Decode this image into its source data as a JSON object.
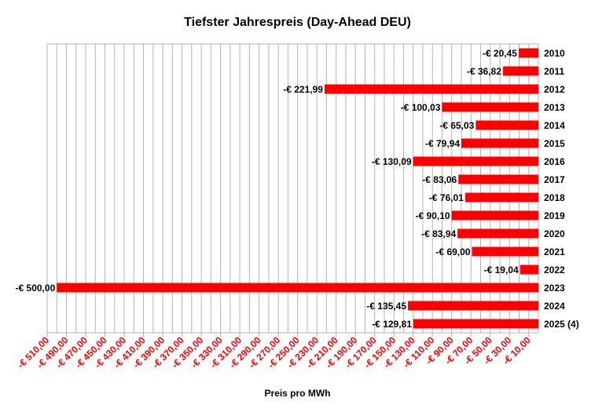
{
  "chart_data": {
    "type": "bar",
    "orientation": "horizontal",
    "title": "Tiefster Jahrespreis (Day-Ahead DEU)",
    "xlabel": "Preis pro MWh",
    "ylabel": "",
    "categories": [
      "2010",
      "2011",
      "2012",
      "2013",
      "2014",
      "2015",
      "2016",
      "2017",
      "2018",
      "2019",
      "2020",
      "2021",
      "2022",
      "2023",
      "2024",
      "2025 (4)"
    ],
    "values": [
      -20.45,
      -36.82,
      -221.99,
      -100.03,
      -65.03,
      -79.94,
      -130.09,
      -83.06,
      -76.01,
      -90.1,
      -83.94,
      -69.0,
      -19.04,
      -500.0,
      -135.45,
      -129.81
    ],
    "value_labels": [
      "-€ 20,45",
      "-€ 36,82",
      "-€ 221,99",
      "-€ 100,03",
      "-€ 65,03",
      "-€ 79,94",
      "-€ 130,09",
      "-€ 83,06",
      "-€ 76,01",
      "-€ 90,10",
      "-€ 83,94",
      "-€ 69,00",
      "-€ 19,04",
      "-€ 500,00",
      "-€ 135,45",
      "-€ 129,81"
    ],
    "xlim": [
      -510,
      0
    ],
    "xticks": [
      -510,
      -490,
      -470,
      -450,
      -430,
      -410,
      -390,
      -370,
      -350,
      -330,
      -310,
      -290,
      -270,
      -250,
      -230,
      -210,
      -190,
      -170,
      -150,
      -130,
      -110,
      -90,
      -70,
      -50,
      -30,
      -10
    ],
    "xtick_labels": [
      "-€ 510,00",
      "-€ 490,00",
      "-€ 470,00",
      "-€ 450,00",
      "-€ 430,00",
      "-€ 410,00",
      "-€ 390,00",
      "-€ 370,00",
      "-€ 350,00",
      "-€ 330,00",
      "-€ 310,00",
      "-€ 290,00",
      "-€ 270,00",
      "-€ 250,00",
      "-€ 230,00",
      "-€ 210,00",
      "-€ 190,00",
      "-€ 170,00",
      "-€ 150,00",
      "-€ 130,00",
      "-€ 110,00",
      "-€ 90,00",
      "-€ 70,00",
      "-€ 50,00",
      "-€ 30,00",
      "-€ 10,00"
    ],
    "grid": true,
    "grid_step": 10,
    "legend": "none",
    "bar_color": "#ff0000",
    "tick_label_color": "#ff0000",
    "grid_color": "#b3b3b3"
  }
}
